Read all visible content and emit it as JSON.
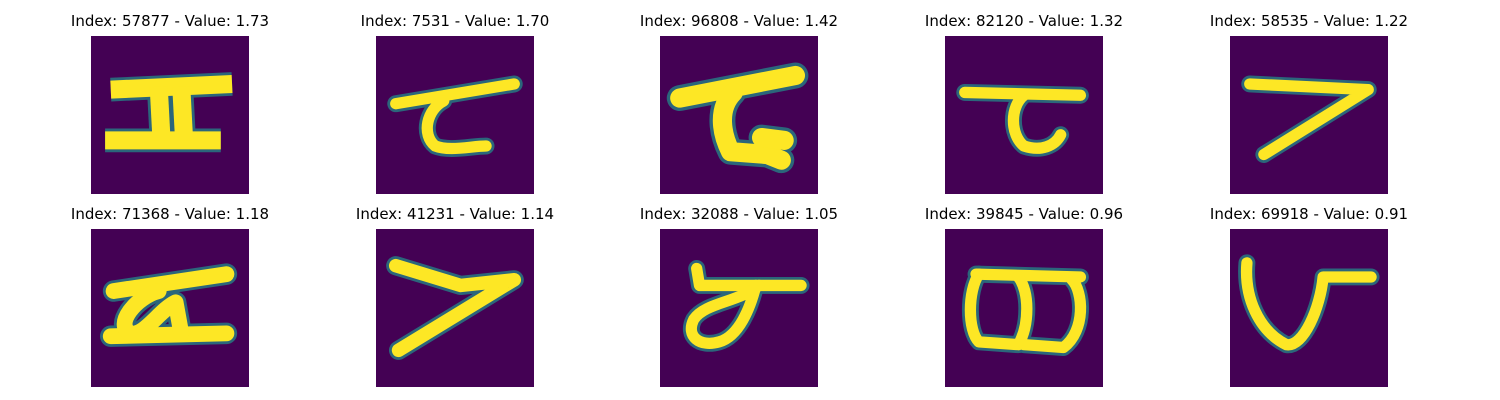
{
  "panels": [
    {
      "label": "Index: 57877 - Value: 1.73",
      "glyph": "glyph-1"
    },
    {
      "label": "Index: 7531 - Value: 1.70",
      "glyph": "glyph-2"
    },
    {
      "label": "Index: 96808 - Value: 1.42",
      "glyph": "glyph-3"
    },
    {
      "label": "Index: 82120 - Value: 1.32",
      "glyph": "glyph-4"
    },
    {
      "label": "Index: 58535 - Value: 1.22",
      "glyph": "glyph-5"
    },
    {
      "label": "Index: 71368 - Value: 1.18",
      "glyph": "glyph-6"
    },
    {
      "label": "Index: 41231 - Value: 1.14",
      "glyph": "glyph-7"
    },
    {
      "label": "Index: 32088 - Value: 1.05",
      "glyph": "glyph-8"
    },
    {
      "label": "Index: 39845 - Value: 0.96",
      "glyph": "glyph-9"
    },
    {
      "label": "Index: 69918 - Value: 0.91",
      "glyph": "glyph-10"
    }
  ],
  "colors": {
    "background": "#440154",
    "stroke": "#fde725",
    "edge": "#21918c"
  }
}
